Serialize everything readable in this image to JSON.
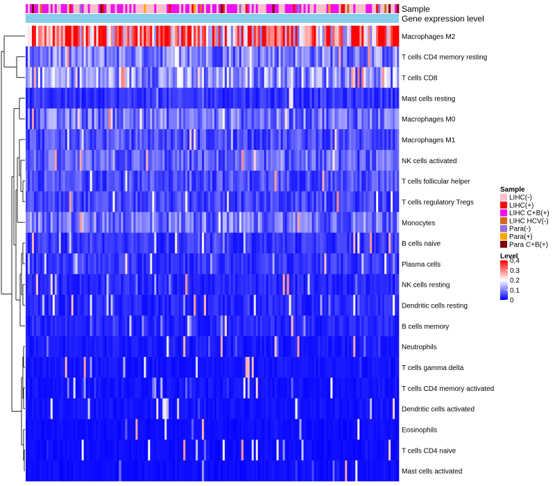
{
  "chart_data": {
    "type": "heatmap",
    "title": "",
    "annotation_rows": [
      "Sample",
      "Gene expression level"
    ],
    "row_labels": [
      "Macrophages M2",
      "T cells CD4 memory resting",
      "T cells CD8",
      "Mast cells resting",
      "Macrophages M0",
      "Macrophages M1",
      "NK cells activated",
      "T cells follicular helper",
      "T cells regulatory  Tregs",
      "Monocytes",
      "B cells naive",
      "Plasma cells",
      "NK cells resting",
      "Dendritic cells resting",
      "B cells memory",
      "Neutrophils",
      "T cells gamma delta",
      "T cells CD4 memory activated",
      "Dendritic cells activated",
      "Eosinophils",
      "T cells CD4 naive",
      "Mast cells activated"
    ],
    "row_mean_level": [
      0.3,
      0.1,
      0.12,
      0.04,
      0.09,
      0.06,
      0.07,
      0.06,
      0.05,
      0.09,
      0.04,
      0.04,
      0.03,
      0.03,
      0.03,
      0.02,
      0.015,
      0.015,
      0.015,
      0.01,
      0.01,
      0.01
    ],
    "level_range": [
      0,
      0.4
    ],
    "sample_legend": {
      "title": "Sample",
      "entries": [
        {
          "label": "LIHC(-)",
          "color": "#f9c0cb"
        },
        {
          "label": "LIHC(+)",
          "color": "#ee1010"
        },
        {
          "label": "LIHC C+B(+)",
          "color": "#ee11ee"
        },
        {
          "label": "LIHC HCV(-)",
          "color": "#d2691e"
        },
        {
          "label": "Para(-)",
          "color": "#9370db"
        },
        {
          "label": "Para(+)",
          "color": "#ffa500"
        },
        {
          "label": "Para C+B(+)",
          "color": "#800000"
        }
      ]
    },
    "level_legend": {
      "title": "Level",
      "ticks": [
        "0.4",
        "0.3",
        "0.2",
        "0.1",
        "0"
      ],
      "tick_values": [
        0.4,
        0.3,
        0.2,
        0.1,
        0
      ],
      "colors": [
        "#0000ff",
        "#ffffff",
        "#ff0000"
      ]
    },
    "gene_expression_color": "#87ceeb"
  }
}
